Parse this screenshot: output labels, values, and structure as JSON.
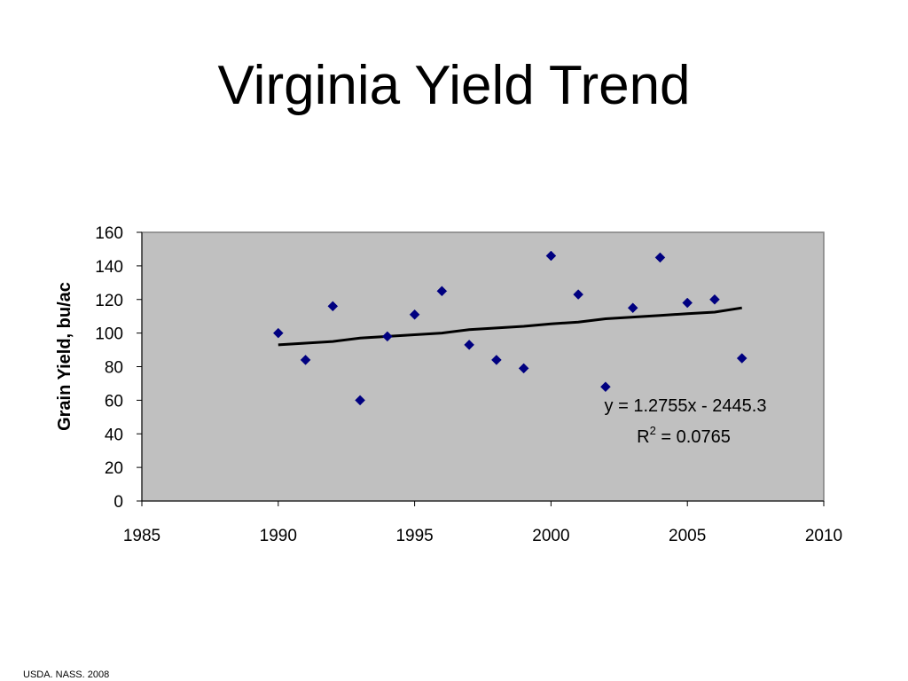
{
  "slide": {
    "title": "Virginia Yield Trend",
    "source": "USDA. NASS. 2008"
  },
  "chart_data": {
    "type": "scatter",
    "title": "",
    "xlabel": "",
    "ylabel": "Grain Yield, bu/ac",
    "xlim": [
      1985,
      2010
    ],
    "ylim": [
      0,
      160
    ],
    "x_ticks": [
      1985,
      1990,
      1995,
      2000,
      2005,
      2010
    ],
    "y_ticks": [
      0,
      20,
      40,
      60,
      80,
      100,
      120,
      140,
      160
    ],
    "grid": false,
    "legend": "none",
    "plot_background": "#c0c0c0",
    "marker_color": "#000080",
    "marker_shape": "diamond",
    "trendline_color": "#000000",
    "series": [
      {
        "x": [
          1990,
          1991,
          1992,
          1993,
          1994,
          1995,
          1996,
          1997,
          1998,
          1999,
          2000,
          2001,
          2002,
          2003,
          2004,
          2005,
          2006,
          2007
        ],
        "y": [
          100,
          84,
          116,
          60,
          98,
          111,
          125,
          93,
          84,
          79,
          146,
          123,
          68,
          115,
          145,
          118,
          120,
          85
        ]
      }
    ],
    "trendline": {
      "x": [
        1990,
        1991,
        1992,
        1993,
        1994,
        1995,
        1996,
        1997,
        1998,
        1999,
        2000,
        2001,
        2002,
        2003,
        2004,
        2005,
        2006,
        2007
      ],
      "y": [
        93,
        94,
        95,
        97,
        98,
        99,
        100,
        102,
        103,
        104,
        105.5,
        106.5,
        108.5,
        109.5,
        110.5,
        111.5,
        112.5,
        115
      ]
    },
    "annotation": {
      "equation": "y = 1.2755x - 2445.3",
      "r2_prefix": "R",
      "r2_exponent": "2",
      "r2_value": " = 0.0765"
    }
  }
}
